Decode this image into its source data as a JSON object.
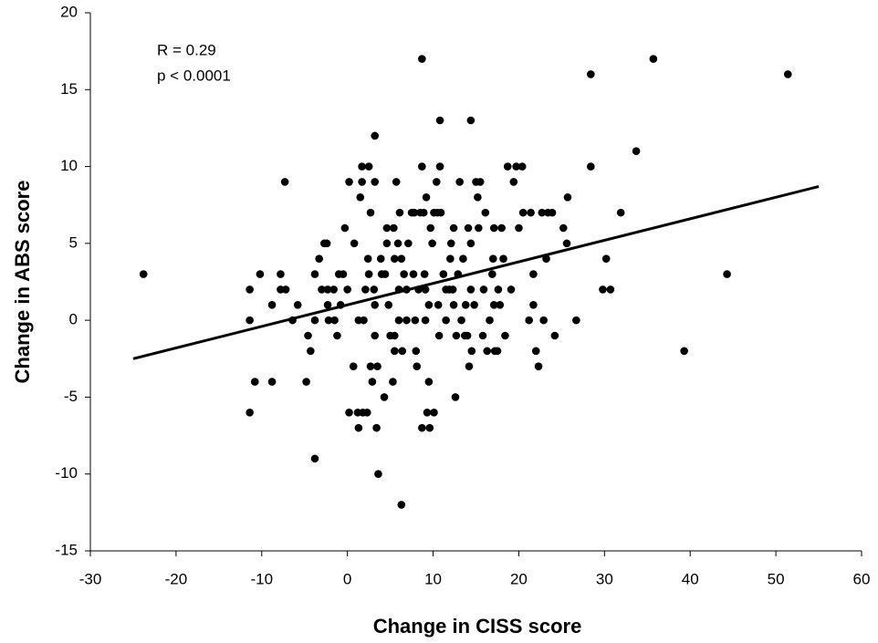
{
  "chart_data": {
    "type": "scatter",
    "x_label": "Change in CISS score",
    "y_label": "Change in ABS score",
    "annotations": [
      "R = 0.29",
      "p < 0.0001"
    ],
    "color": "#000000",
    "xlim": [
      -30,
      60
    ],
    "xticks": [
      -30,
      -20,
      -10,
      0,
      10,
      20,
      30,
      40,
      50,
      60
    ],
    "ylim": [
      -15,
      20
    ],
    "yticks": [
      -15,
      -10,
      -5,
      0,
      5,
      10,
      15,
      20
    ],
    "grid": false,
    "x": [
      -23.8,
      -11.4,
      -11.4,
      -11.4,
      -10.8,
      -10.2,
      -8.8,
      -8.8,
      -7.8,
      -7.8,
      -7.2,
      -7.3,
      -6.4,
      -5.8,
      -4.8,
      -4.6,
      -4.3,
      -3.8,
      -3.8,
      -3.8,
      -3.3,
      -2.7,
      -2.4,
      -3,
      -2.3,
      -2.3,
      -2.2,
      -1.6,
      -1.5,
      -1.2,
      -1,
      -0.8,
      -0.5,
      -0.3,
      0,
      0.2,
      0.2,
      0.7,
      0.8,
      1.2,
      1.3,
      1.3,
      1.5,
      1.7,
      1.7,
      1.8,
      1.9,
      2.1,
      2.3,
      2.4,
      2.5,
      2.5,
      2.7,
      2.7,
      2.9,
      3.1,
      3.2,
      3.4,
      3.2,
      3.2,
      3.2,
      3.5,
      3.6,
      3.9,
      4,
      4.3,
      4.4,
      4.6,
      4.6,
      4.8,
      5,
      5.3,
      5.4,
      5.5,
      5.5,
      5.5,
      5.7,
      5.9,
      6,
      6,
      6.3,
      6.1,
      6.3,
      6.4,
      6.6,
      6.9,
      6.9,
      7.1,
      7.5,
      7.7,
      7.8,
      7.9,
      8,
      8.1,
      8.3,
      8.5,
      8.7,
      8.7,
      8.7,
      8.9,
      9,
      9.1,
      9.1,
      9.2,
      9.3,
      9.5,
      9.5,
      9.6,
      9.7,
      9.9,
      10.1,
      10.1,
      10.4,
      10.5,
      10.6,
      10.7,
      10.8,
      10.8,
      10.9,
      11.2,
      11.5,
      11.5,
      11.9,
      12,
      12.1,
      12.3,
      12.4,
      12.4,
      12.6,
      12.7,
      12.9,
      13.1,
      13.3,
      13.5,
      13.7,
      13.8,
      14,
      14.1,
      14.2,
      14.4,
      14.4,
      14.4,
      14.5,
      14.8,
      15,
      15.2,
      15.3,
      15.5,
      15.8,
      15.9,
      16.1,
      16.3,
      16.6,
      16.9,
      17,
      17.1,
      17.1,
      17.2,
      17.5,
      17.6,
      17.8,
      18,
      18.2,
      18.4,
      18.7,
      19.1,
      19.4,
      19.7,
      20,
      20.4,
      20.5,
      21.2,
      21.4,
      21.7,
      21.7,
      22,
      22.3,
      22.7,
      22.9,
      23.2,
      23.4,
      23.9,
      24.2,
      25.2,
      25.6,
      25.7,
      26.7,
      28.4,
      28.4,
      29.8,
      30.2,
      30.7,
      31.9,
      33.7,
      35.7,
      39.3,
      44.3,
      51.4
    ],
    "values": [
      3,
      2,
      0,
      -6,
      -4,
      3,
      -4,
      1,
      3,
      2,
      2,
      9,
      0,
      1,
      -4,
      -1,
      -2,
      3,
      0,
      -9,
      4,
      5,
      5,
      2,
      2,
      1,
      0,
      2,
      0,
      -1,
      3,
      1,
      3,
      6,
      2,
      -6,
      9,
      -3,
      5,
      -6,
      -7,
      0,
      8,
      10,
      9,
      -6,
      0,
      2,
      -6,
      4,
      3,
      10,
      7,
      -3,
      -4,
      2,
      12,
      -7,
      9,
      1,
      -1,
      -3,
      -10,
      4,
      3,
      -5,
      3,
      6,
      5,
      1,
      -1,
      -4,
      6,
      4,
      -1,
      -2,
      9,
      5,
      2,
      0,
      -12,
      7,
      4,
      -2,
      3,
      2,
      0,
      5,
      7,
      3,
      7,
      0,
      -2,
      -3,
      2,
      7,
      10,
      17,
      -7,
      7,
      3,
      2,
      0,
      8,
      -6,
      -4,
      1,
      -7,
      6,
      5,
      -6,
      7,
      9,
      7,
      1,
      -1,
      13,
      10,
      7,
      3,
      2,
      0,
      2,
      4,
      5,
      2,
      1,
      6,
      -5,
      -1,
      3,
      9,
      0,
      4,
      -1,
      1,
      -1,
      6,
      -3,
      13,
      5,
      2,
      -2,
      1,
      9,
      8,
      6,
      9,
      -1,
      2,
      7,
      -2,
      0,
      3,
      4,
      6,
      1,
      -2,
      -2,
      2,
      1,
      6,
      4,
      -1,
      10,
      2,
      9,
      10,
      6,
      10,
      7,
      0,
      7,
      3,
      1,
      -2,
      -3,
      7,
      0,
      4,
      7,
      7,
      -1,
      6,
      5,
      8,
      0,
      16,
      10,
      2,
      4,
      2,
      7,
      11,
      17,
      -2,
      3,
      16
    ],
    "trendline": {
      "x": [
        -25,
        55
      ],
      "values": [
        -2.5,
        8.7
      ]
    }
  }
}
